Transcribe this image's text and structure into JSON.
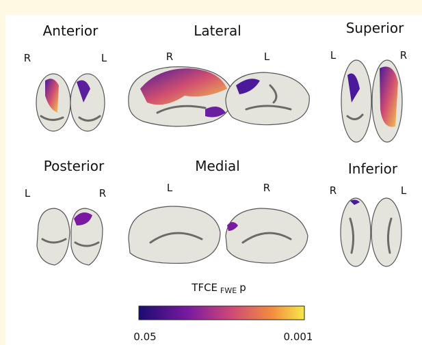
{
  "panels": [
    {
      "title": "Anterior",
      "left": "R",
      "right": "L"
    },
    {
      "title": "Lateral",
      "left": "R",
      "right": "L"
    },
    {
      "title": "Superior",
      "left": "L",
      "right": "R"
    },
    {
      "title": "Posterior",
      "left": "L",
      "right": "R"
    },
    {
      "title": "Medial",
      "left": "L",
      "right": "R"
    },
    {
      "title": "Inferior",
      "left": "R",
      "right": "L"
    }
  ],
  "colorbar": {
    "label": "TFCE",
    "subscript": "FWE",
    "suffix": "p",
    "ticks": [
      "0.05",
      "0.001"
    ]
  }
}
